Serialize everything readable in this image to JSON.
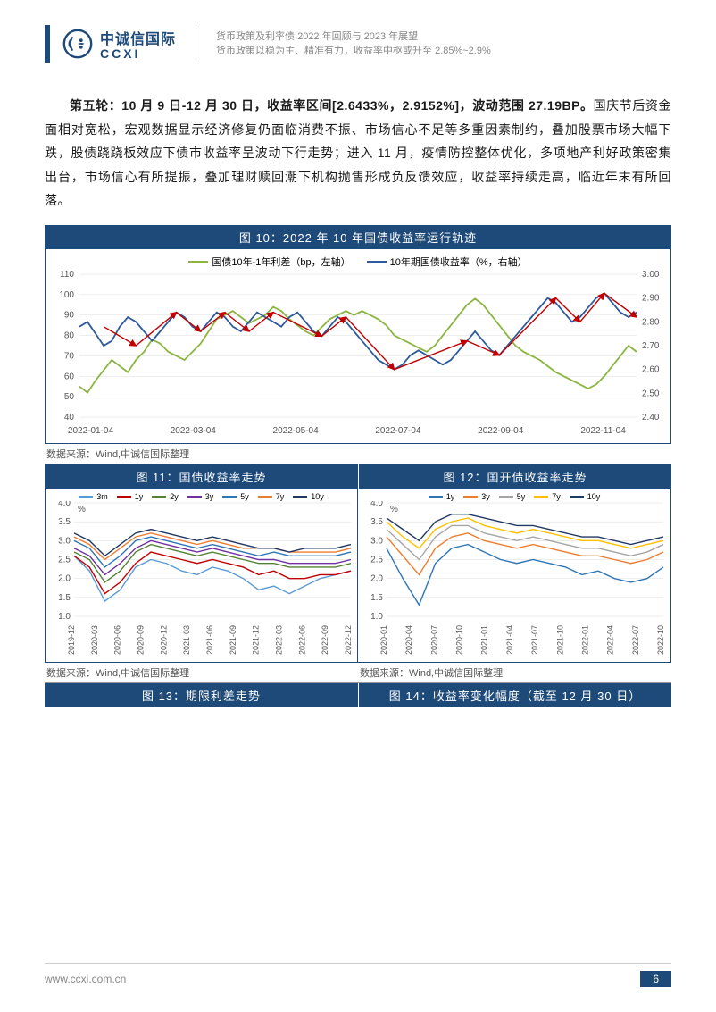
{
  "header": {
    "logo_cn": "中诚信国际",
    "logo_en": "CCXI",
    "subtitle_line1": "货币政策及利率债 2022 年回顾与 2023 年展望",
    "subtitle_line2": "货币政策以稳为主、精准有力，收益率中枢或升至 2.85%~2.9%"
  },
  "paragraph": {
    "highlight": "第五轮：10 月 9 日-12 月 30 日，收益率区间[2.6433%，2.9152%]，波动范围 27.19BP。",
    "rest": "国庆节后资金面相对宽松，宏观数据显示经济修复仍面临消费不振、市场信心不足等多重因素制约，叠加股票市场大幅下跌，股债跷跷板效应下债市收益率呈波动下行走势；进入 11 月，疫情防控整体优化，多项地产利好政策密集出台，市场信心有所提振，叠加理财赎回潮下机构抛售形成负反馈效应，收益率持续走高，临近年末有所回落。"
  },
  "chart10": {
    "title": "图 10：2022 年 10 年国债收益率运行轨迹",
    "legend1": "国债10年-1年利差（bp，左轴）",
    "legend2": "10年期国债收益率（%，右轴）",
    "legend1_color": "#8bb53f",
    "legend2_color": "#2e5a9c",
    "arrow_color": "#c00000",
    "y_left_ticks": [
      40,
      50,
      60,
      70,
      80,
      90,
      100,
      110
    ],
    "y_right_ticks": [
      "2.40",
      "2.50",
      "2.60",
      "2.70",
      "2.80",
      "2.90",
      "3.00"
    ],
    "x_ticks": [
      "2022-01-04",
      "2022-03-04",
      "2022-05-04",
      "2022-07-04",
      "2022-09-04",
      "2022-11-04"
    ],
    "series_spread": [
      55,
      52,
      58,
      63,
      68,
      65,
      62,
      68,
      72,
      78,
      76,
      72,
      70,
      68,
      72,
      76,
      82,
      88,
      90,
      92,
      89,
      86,
      88,
      90,
      94,
      92,
      88,
      85,
      82,
      80,
      84,
      88,
      90,
      92,
      90,
      92,
      90,
      88,
      85,
      80,
      78,
      76,
      74,
      72,
      75,
      80,
      85,
      90,
      95,
      98,
      95,
      90,
      85,
      80,
      75,
      72,
      70,
      68,
      65,
      62,
      60,
      58,
      56,
      54,
      56,
      60,
      65,
      70,
      75,
      72
    ],
    "series_yield": [
      2.78,
      2.8,
      2.75,
      2.7,
      2.72,
      2.78,
      2.82,
      2.8,
      2.76,
      2.72,
      2.76,
      2.8,
      2.84,
      2.82,
      2.78,
      2.76,
      2.8,
      2.84,
      2.82,
      2.78,
      2.76,
      2.8,
      2.84,
      2.82,
      2.8,
      2.78,
      2.82,
      2.84,
      2.8,
      2.76,
      2.74,
      2.78,
      2.82,
      2.8,
      2.76,
      2.72,
      2.68,
      2.64,
      2.62,
      2.6,
      2.62,
      2.66,
      2.68,
      2.66,
      2.64,
      2.62,
      2.64,
      2.68,
      2.72,
      2.76,
      2.72,
      2.68,
      2.66,
      2.7,
      2.74,
      2.78,
      2.82,
      2.86,
      2.9,
      2.88,
      2.84,
      2.8,
      2.82,
      2.86,
      2.9,
      2.92,
      2.88,
      2.84,
      2.82,
      2.84
    ],
    "arrows": [
      [
        3,
        2.78,
        7,
        2.7
      ],
      [
        7,
        2.7,
        12,
        2.84
      ],
      [
        12,
        2.84,
        15,
        2.76
      ],
      [
        15,
        2.76,
        18,
        2.84
      ],
      [
        18,
        2.84,
        21,
        2.76
      ],
      [
        21,
        2.76,
        24,
        2.84
      ],
      [
        24,
        2.84,
        30,
        2.74
      ],
      [
        30,
        2.74,
        33,
        2.82
      ],
      [
        33,
        2.82,
        39,
        2.6
      ],
      [
        39,
        2.6,
        48,
        2.72
      ],
      [
        48,
        2.72,
        52,
        2.66
      ],
      [
        52,
        2.66,
        59,
        2.9
      ],
      [
        59,
        2.9,
        62,
        2.8
      ],
      [
        62,
        2.8,
        65,
        2.92
      ],
      [
        65,
        2.92,
        69,
        2.82
      ]
    ],
    "source": "数据来源：Wind,中诚信国际整理",
    "bg": "#ffffff",
    "grid": "#dddddd"
  },
  "chart11": {
    "title": "图 11：国债收益率走势",
    "y_unit": "%",
    "y_ticks": [
      "1.0",
      "1.5",
      "2.0",
      "2.5",
      "3.0",
      "3.5",
      "4.0"
    ],
    "x_ticks": [
      "2019-12",
      "2020-03",
      "2020-06",
      "2020-09",
      "2020-12",
      "2021-03",
      "2021-06",
      "2021-09",
      "2021-12",
      "2022-03",
      "2022-06",
      "2022-09",
      "2022-12"
    ],
    "legend": [
      {
        "label": "3m",
        "color": "#5b9bd5"
      },
      {
        "label": "1y",
        "color": "#c00000"
      },
      {
        "label": "2y",
        "color": "#548235"
      },
      {
        "label": "3y",
        "color": "#7030a0"
      },
      {
        "label": "5y",
        "color": "#2e75b6"
      },
      {
        "label": "7y",
        "color": "#ed7d31"
      },
      {
        "label": "10y",
        "color": "#203864"
      }
    ],
    "series": {
      "3m": [
        2.6,
        2.2,
        1.4,
        1.7,
        2.3,
        2.5,
        2.4,
        2.2,
        2.1,
        2.3,
        2.2,
        2.0,
        1.7,
        1.8,
        1.6,
        1.8,
        2.0,
        2.1,
        2.2
      ],
      "1y": [
        2.6,
        2.3,
        1.6,
        1.9,
        2.4,
        2.7,
        2.6,
        2.5,
        2.4,
        2.5,
        2.4,
        2.3,
        2.1,
        2.2,
        2.0,
        2.0,
        2.1,
        2.1,
        2.2
      ],
      "2y": [
        2.7,
        2.5,
        1.9,
        2.2,
        2.7,
        2.9,
        2.8,
        2.7,
        2.6,
        2.7,
        2.6,
        2.5,
        2.4,
        2.4,
        2.3,
        2.3,
        2.3,
        2.3,
        2.4
      ],
      "3y": [
        2.8,
        2.6,
        2.1,
        2.4,
        2.8,
        3.0,
        2.9,
        2.8,
        2.7,
        2.8,
        2.7,
        2.6,
        2.5,
        2.5,
        2.4,
        2.4,
        2.4,
        2.4,
        2.5
      ],
      "5y": [
        3.0,
        2.8,
        2.3,
        2.6,
        3.0,
        3.1,
        3.0,
        2.9,
        2.8,
        2.9,
        2.8,
        2.7,
        2.6,
        2.7,
        2.6,
        2.6,
        2.6,
        2.6,
        2.7
      ],
      "7y": [
        3.1,
        2.9,
        2.5,
        2.8,
        3.1,
        3.2,
        3.1,
        3.0,
        2.9,
        3.0,
        2.9,
        2.8,
        2.8,
        2.8,
        2.7,
        2.7,
        2.7,
        2.7,
        2.8
      ],
      "10y": [
        3.2,
        3.0,
        2.6,
        2.9,
        3.2,
        3.3,
        3.2,
        3.1,
        3.0,
        3.1,
        3.0,
        2.9,
        2.8,
        2.8,
        2.7,
        2.8,
        2.8,
        2.8,
        2.9
      ]
    },
    "source": "数据来源：Wind,中诚信国际整理"
  },
  "chart12": {
    "title": "图 12：国开债收益率走势",
    "y_unit": "%",
    "y_ticks": [
      "1.0",
      "1.5",
      "2.0",
      "2.5",
      "3.0",
      "3.5",
      "4.0"
    ],
    "x_ticks": [
      "2020-01",
      "2020-04",
      "2020-07",
      "2020-10",
      "2021-01",
      "2021-04",
      "2021-07",
      "2021-10",
      "2022-01",
      "2022-04",
      "2022-07",
      "2022-10"
    ],
    "legend": [
      {
        "label": "1y",
        "color": "#2e75b6"
      },
      {
        "label": "3y",
        "color": "#ed7d31"
      },
      {
        "label": "5y",
        "color": "#a5a5a5"
      },
      {
        "label": "7y",
        "color": "#ffc000"
      },
      {
        "label": "10y",
        "color": "#203864"
      }
    ],
    "series": {
      "1y": [
        2.8,
        2.0,
        1.3,
        2.4,
        2.8,
        2.9,
        2.7,
        2.5,
        2.4,
        2.5,
        2.4,
        2.3,
        2.1,
        2.2,
        2.0,
        1.9,
        2.0,
        2.3
      ],
      "3y": [
        3.1,
        2.6,
        2.1,
        2.8,
        3.1,
        3.2,
        3.0,
        2.9,
        2.8,
        2.9,
        2.8,
        2.7,
        2.6,
        2.6,
        2.5,
        2.4,
        2.5,
        2.7
      ],
      "5y": [
        3.3,
        2.9,
        2.5,
        3.1,
        3.4,
        3.4,
        3.2,
        3.1,
        3.0,
        3.1,
        3.0,
        2.9,
        2.8,
        2.8,
        2.7,
        2.6,
        2.7,
        2.9
      ],
      "7y": [
        3.5,
        3.1,
        2.8,
        3.3,
        3.5,
        3.6,
        3.4,
        3.3,
        3.2,
        3.3,
        3.2,
        3.1,
        3.0,
        3.0,
        2.9,
        2.8,
        2.9,
        3.0
      ],
      "10y": [
        3.6,
        3.3,
        3.0,
        3.5,
        3.7,
        3.7,
        3.6,
        3.5,
        3.4,
        3.4,
        3.3,
        3.2,
        3.1,
        3.1,
        3.0,
        2.9,
        3.0,
        3.1
      ]
    },
    "source": "数据来源：Wind,中诚信国际整理"
  },
  "chart13": {
    "title": "图 13：期限利差走势"
  },
  "chart14": {
    "title": "图 14：收益率变化幅度（截至 12 月 30 日）"
  },
  "footer": {
    "url": "www.ccxi.com.cn",
    "page": "6"
  },
  "colors": {
    "brand": "#1e4a7a",
    "text_gray": "#888888"
  }
}
